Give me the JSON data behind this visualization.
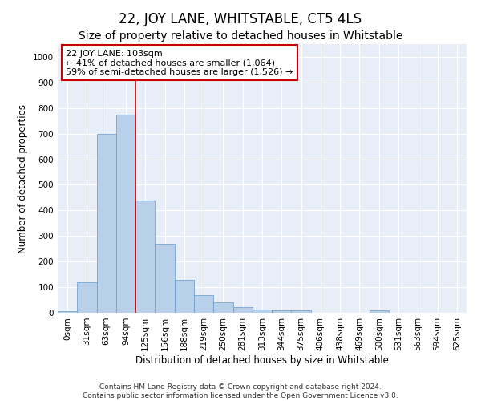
{
  "title": "22, JOY LANE, WHITSTABLE, CT5 4LS",
  "subtitle": "Size of property relative to detached houses in Whitstable",
  "xlabel": "Distribution of detached houses by size in Whitstable",
  "ylabel": "Number of detached properties",
  "bar_labels": [
    "0sqm",
    "31sqm",
    "63sqm",
    "94sqm",
    "125sqm",
    "156sqm",
    "188sqm",
    "219sqm",
    "250sqm",
    "281sqm",
    "313sqm",
    "344sqm",
    "375sqm",
    "406sqm",
    "438sqm",
    "469sqm",
    "500sqm",
    "531sqm",
    "563sqm",
    "594sqm",
    "625sqm"
  ],
  "bar_values": [
    5,
    120,
    700,
    775,
    440,
    270,
    130,
    70,
    40,
    22,
    12,
    8,
    10,
    0,
    0,
    0,
    8,
    0,
    0,
    0,
    0
  ],
  "bar_color": "#b8d0ea",
  "bar_edge_color": "#6699cc",
  "marker_label": "22 JOY LANE: 103sqm",
  "annotation_line1": "← 41% of detached houses are smaller (1,064)",
  "annotation_line2": "59% of semi-detached houses are larger (1,526) →",
  "annotation_box_color": "#ffffff",
  "annotation_box_edge": "#cc0000",
  "vline_color": "#cc0000",
  "vline_x_index": 3,
  "ylim_max": 1050,
  "bg_color": "#e8eef8",
  "grid_color": "#ffffff",
  "footer_line1": "Contains HM Land Registry data © Crown copyright and database right 2024.",
  "footer_line2": "Contains public sector information licensed under the Open Government Licence v3.0.",
  "title_fontsize": 12,
  "subtitle_fontsize": 10,
  "axis_label_fontsize": 8.5,
  "tick_fontsize": 7.5,
  "annotation_fontsize": 8,
  "footer_fontsize": 6.5
}
